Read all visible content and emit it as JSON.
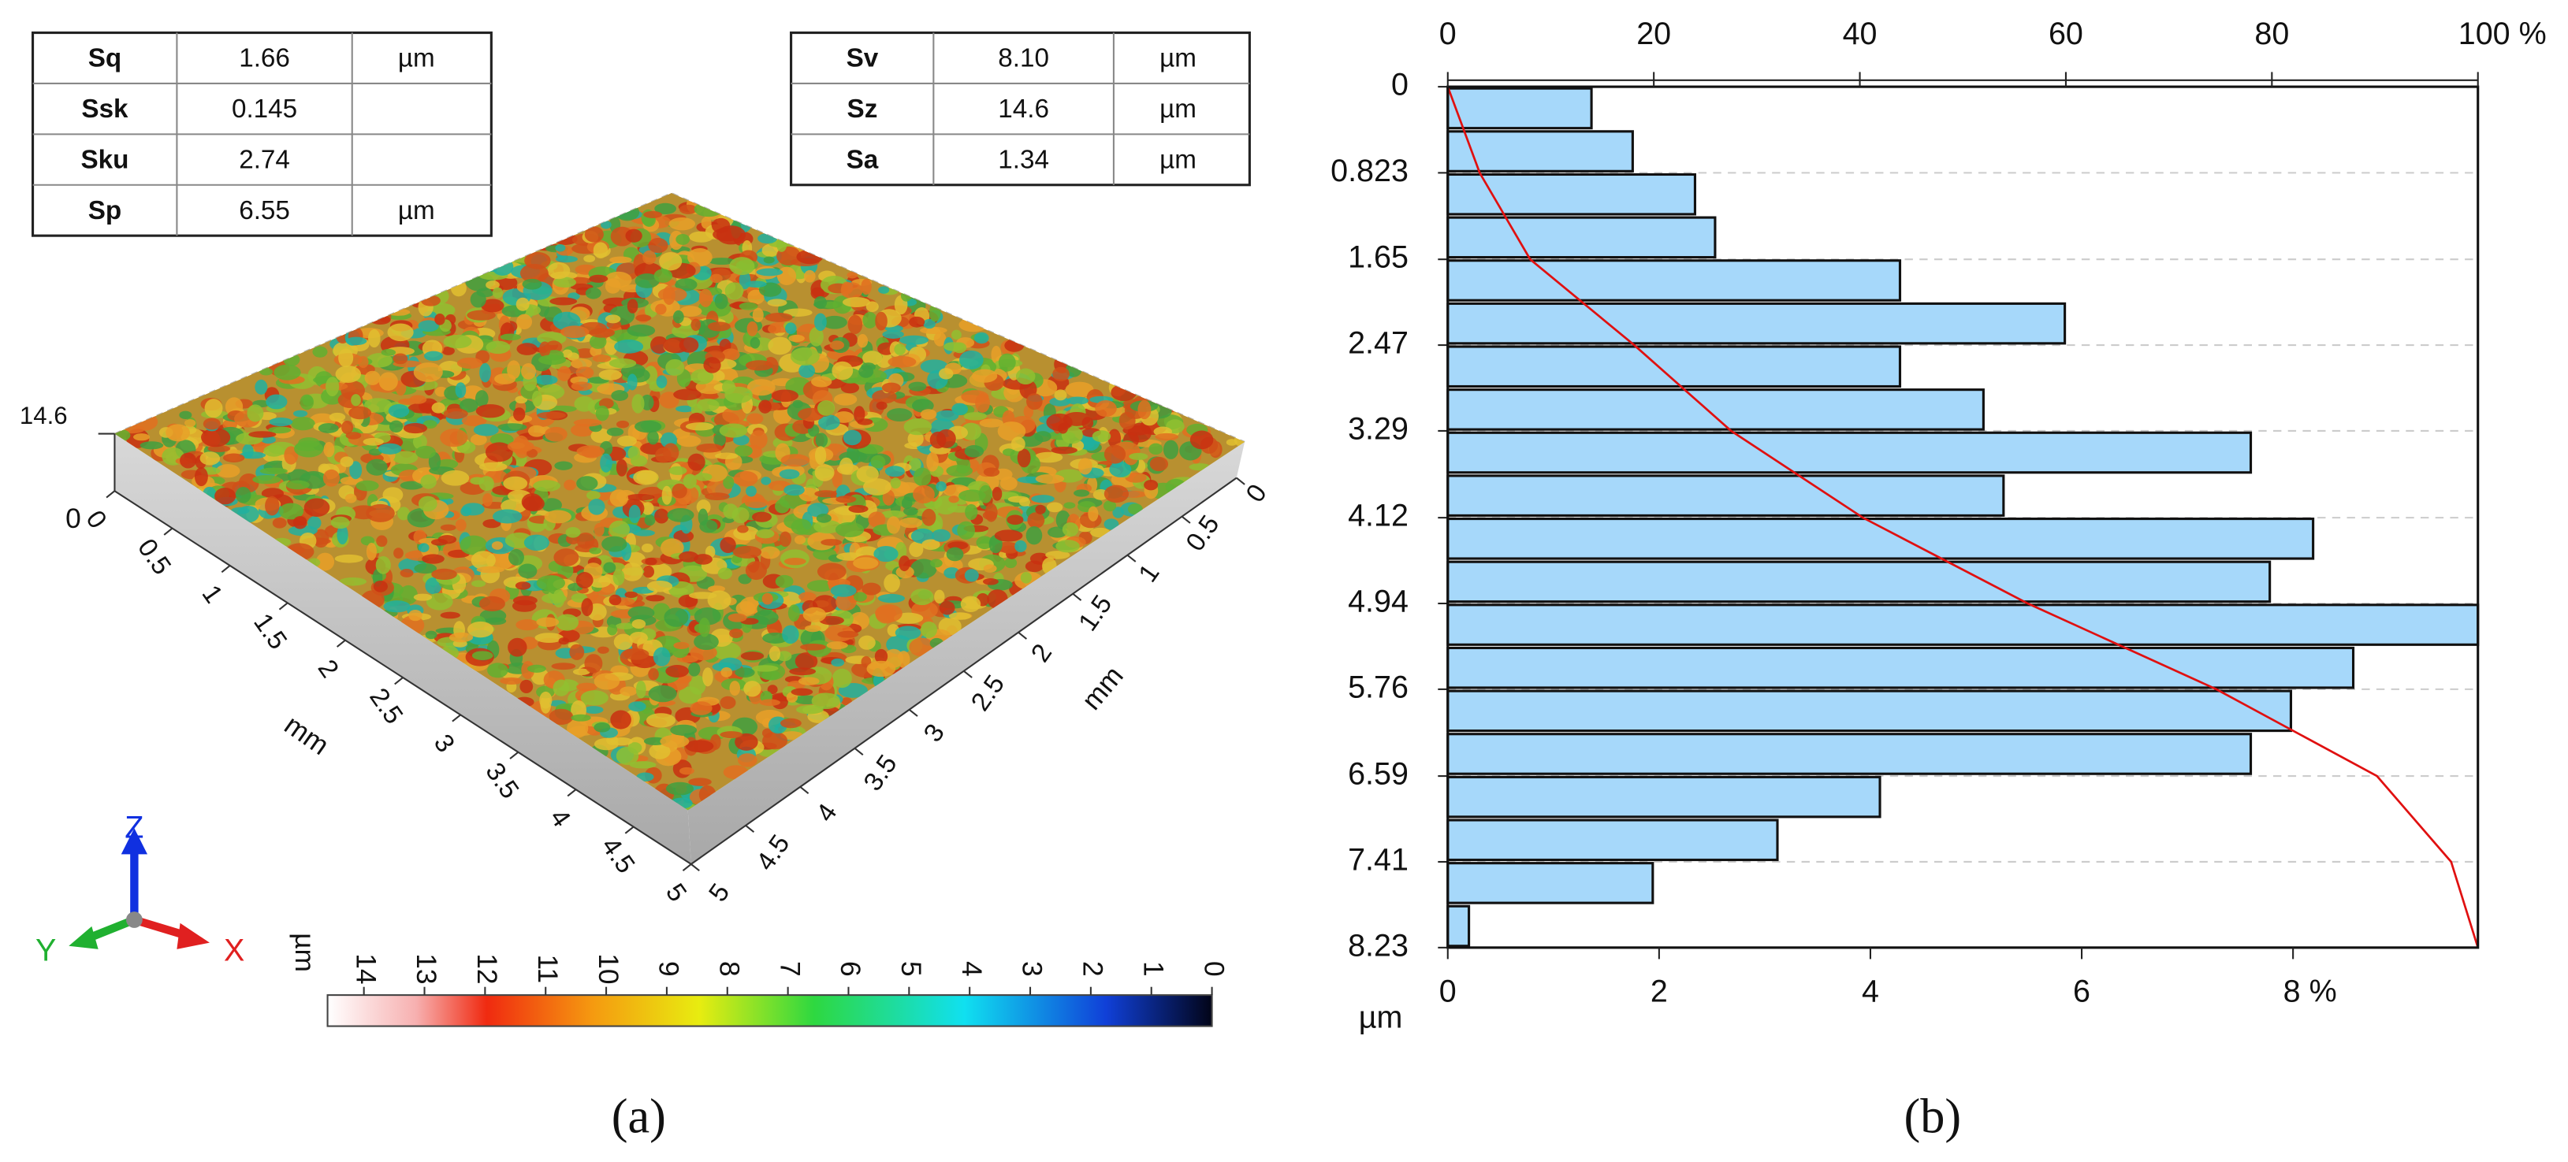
{
  "panel_labels": [
    "(a)",
    "(b)"
  ],
  "tables": [
    {
      "rows": [
        [
          "Sq",
          "1.66",
          "µm"
        ],
        [
          "Ssk",
          "0.145"
        ],
        [
          "Sku",
          "2.74"
        ],
        [
          "Sp",
          "6.55",
          "µm"
        ]
      ]
    },
    {
      "rows": [
        [
          "Sv",
          "8.10",
          "µm"
        ],
        [
          "Sz",
          "14.6",
          "µm"
        ],
        [
          "Sa",
          "1.34",
          "µm"
        ]
      ]
    }
  ],
  "surface": {
    "z_max_label": "14.6",
    "z_min_label": "0",
    "x_ticks": [
      0,
      0.5,
      1,
      1.5,
      2,
      2.5,
      3,
      3.5,
      4,
      4.5,
      5
    ],
    "y_ticks": [
      0,
      0.5,
      1,
      1.5,
      2,
      2.5,
      3,
      3.5,
      4,
      4.5,
      5
    ],
    "x_unit": "mm",
    "y_unit": "mm",
    "axes": [
      "Z",
      "Y",
      "X"
    ]
  },
  "colorbar": {
    "unit": "µm",
    "range": [
      0,
      14.6
    ],
    "ticks": [
      14,
      13,
      12,
      11,
      10,
      9,
      8,
      7,
      6,
      5,
      4,
      3,
      2,
      1,
      0
    ]
  },
  "chart_data": {
    "type": "barh_histogram",
    "bins": [
      0,
      0.4115,
      0.823,
      1.2345,
      1.646,
      2.0575,
      2.469,
      2.8805,
      3.292,
      3.7035,
      4.115,
      4.5265,
      4.938,
      5.3495,
      5.761,
      6.1725,
      6.584,
      6.9955,
      7.407,
      7.8185,
      8.23
    ],
    "values": [
      1.36,
      1.75,
      2.34,
      2.53,
      4.28,
      5.84,
      4.28,
      5.07,
      7.6,
      5.26,
      8.19,
      7.78,
      9.75,
      8.57,
      7.98,
      7.6,
      4.09,
      3.12,
      1.94,
      0.2
    ],
    "color": "#a6d8fa",
    "ylim": [
      0,
      8.23
    ],
    "yticks": [
      0,
      0.823,
      1.65,
      2.47,
      3.29,
      4.12,
      4.94,
      5.76,
      6.59,
      7.41,
      8.23
    ],
    "y_label": "µm",
    "xlim": [
      0,
      9.75
    ],
    "xticks": [
      0,
      2,
      4,
      6,
      {
        "value": 8,
        "label": "8 %"
      }
    ],
    "x2lim": [
      0,
      100
    ],
    "x2ticks": [
      0,
      20,
      40,
      60,
      80,
      {
        "value": 100,
        "label": "100 %"
      }
    ],
    "cumulative": {
      "color": "#e01010",
      "axis": "x2",
      "x": [
        0,
        0.823,
        1.65,
        2.47,
        3.29,
        4.12,
        4.94,
        5.76,
        6.59,
        7.41,
        8.23
      ],
      "values": [
        0,
        3.1,
        8.0,
        18.1,
        27.5,
        40.3,
        56.3,
        74.6,
        90.2,
        97.4,
        100
      ]
    },
    "grid": true
  }
}
